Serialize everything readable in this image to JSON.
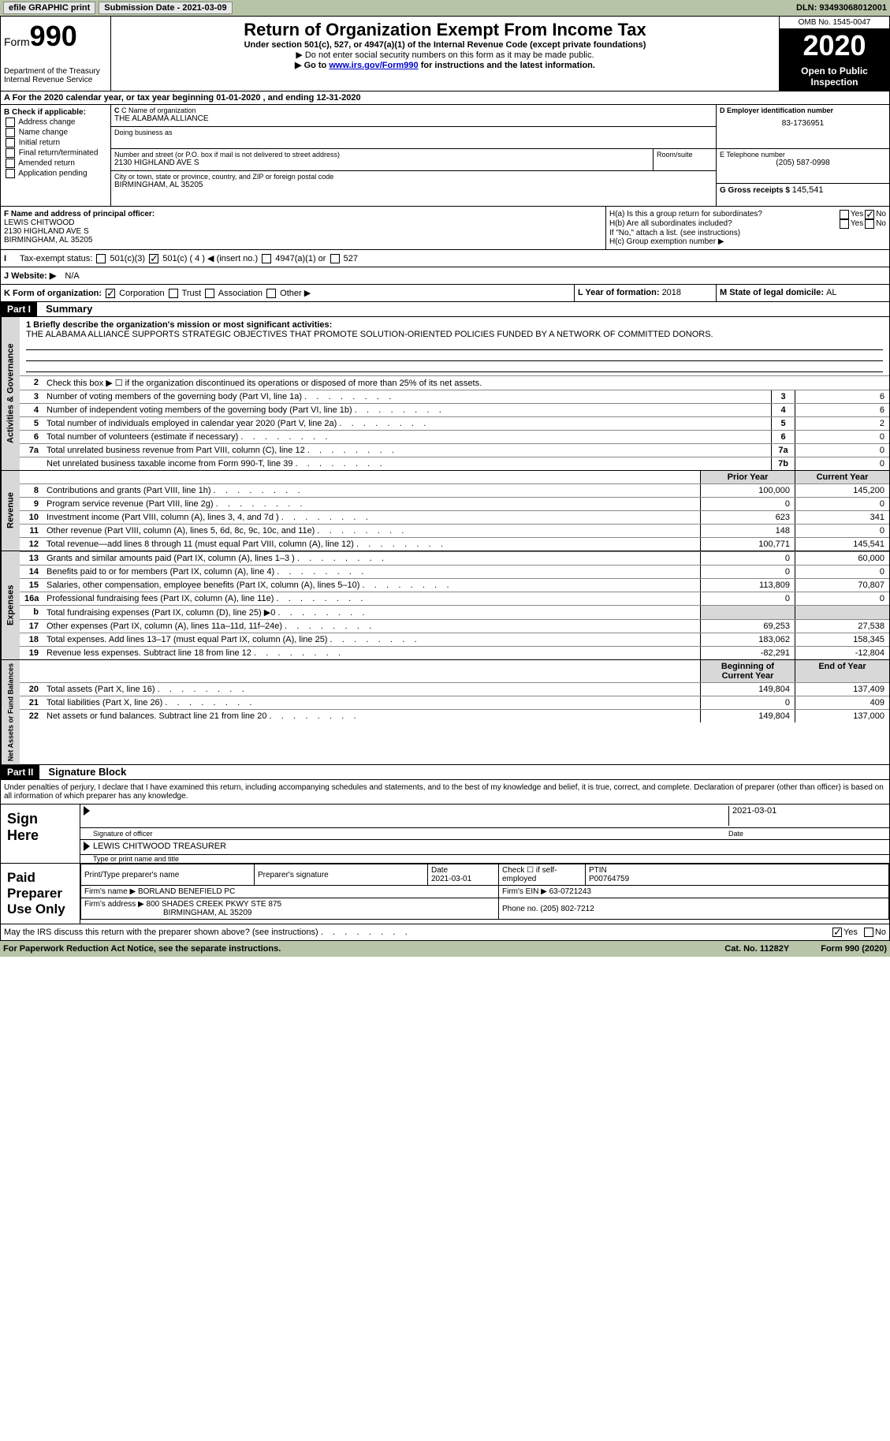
{
  "topbar": {
    "efile": "efile GRAPHIC print",
    "submission_label": "Submission Date - ",
    "submission_date": "2021-03-09",
    "dln_label": "DLN: ",
    "dln": "93493068012001"
  },
  "header": {
    "form_word": "Form",
    "form_num": "990",
    "dept": "Department of the Treasury\nInternal Revenue Service",
    "title": "Return of Organization Exempt From Income Tax",
    "sub1": "Under section 501(c), 527, or 4947(a)(1) of the Internal Revenue Code (except private foundations)",
    "sub2": "▶ Do not enter social security numbers on this form as it may be made public.",
    "sub3_pre": "▶ Go to ",
    "sub3_link": "www.irs.gov/Form990",
    "sub3_post": " for instructions and the latest information.",
    "omb": "OMB No. 1545-0047",
    "year": "2020",
    "inspect": "Open to Public Inspection"
  },
  "section_a": "A For the 2020 calendar year, or tax year beginning 01-01-2020    , and ending 12-31-2020",
  "section_b": {
    "label": "B Check if applicable:",
    "opts": [
      "Address change",
      "Name change",
      "Initial return",
      "Final return/terminated",
      "Amended return",
      "Application pending"
    ]
  },
  "section_c": {
    "name_label": "C Name of organization",
    "name": "THE ALABAMA ALLIANCE",
    "dba_label": "Doing business as",
    "dba": "",
    "addr_label": "Number and street (or P.O. box if mail is not delivered to street address)",
    "room_label": "Room/suite",
    "addr": "2130 HIGHLAND AVE S",
    "city_label": "City or town, state or province, country, and ZIP or foreign postal code",
    "city": "BIRMINGHAM, AL  35205"
  },
  "section_d": {
    "label": "D Employer identification number",
    "value": "83-1736951"
  },
  "section_e": {
    "label": "E Telephone number",
    "value": "(205) 587-0998"
  },
  "section_g": {
    "label": "G Gross receipts $ ",
    "value": "145,541"
  },
  "section_f": {
    "label": "F  Name and address of principal officer:",
    "name": "LEWIS CHITWOOD",
    "addr1": "2130 HIGHLAND AVE S",
    "addr2": "BIRMINGHAM, AL  35205"
  },
  "section_h": {
    "ha": "H(a)  Is this a group return for subordinates?",
    "hb": "H(b)  Are all subordinates included?",
    "hb_note": "If \"No,\" attach a list. (see instructions)",
    "hc": "H(c)  Group exemption number ▶",
    "yes": "Yes",
    "no": "No"
  },
  "tax_status": {
    "label": "Tax-exempt status:",
    "opts": [
      "501(c)(3)",
      "501(c) ( 4 ) ◀ (insert no.)",
      "4947(a)(1) or",
      "527"
    ]
  },
  "website": {
    "label": "J   Website: ▶",
    "value": "N/A"
  },
  "section_k": {
    "label": "K Form of organization:",
    "opts": [
      "Corporation",
      "Trust",
      "Association",
      "Other ▶"
    ]
  },
  "section_l": {
    "label": "L Year of formation: ",
    "value": "2018"
  },
  "section_m": {
    "label": "M State of legal domicile: ",
    "value": "AL"
  },
  "part1": {
    "num": "Part I",
    "title": "Summary",
    "mission_label": "1  Briefly describe the organization's mission or most significant activities:",
    "mission": "THE ALABAMA ALLIANCE SUPPORTS STRATEGIC OBJECTIVES THAT PROMOTE SOLUTION-ORIENTED POLICIES FUNDED BY A NETWORK OF COMMITTED DONORS.",
    "line2": "Check this box ▶ ☐  if the organization discontinued its operations or disposed of more than 25% of its net assets.",
    "gov_label": "Activities & Governance",
    "rev_label": "Revenue",
    "exp_label": "Expenses",
    "net_label": "Net Assets or Fund Balances",
    "prior_header": "Prior Year",
    "current_header": "Current Year",
    "beg_header": "Beginning of Current Year",
    "end_header": "End of Year",
    "rows_gov": [
      {
        "n": "3",
        "d": "Number of voting members of the governing body (Part VI, line 1a)",
        "sn": "3",
        "v": "6"
      },
      {
        "n": "4",
        "d": "Number of independent voting members of the governing body (Part VI, line 1b)",
        "sn": "4",
        "v": "6"
      },
      {
        "n": "5",
        "d": "Total number of individuals employed in calendar year 2020 (Part V, line 2a)",
        "sn": "5",
        "v": "2"
      },
      {
        "n": "6",
        "d": "Total number of volunteers (estimate if necessary)",
        "sn": "6",
        "v": "0"
      },
      {
        "n": "7a",
        "d": "Total unrelated business revenue from Part VIII, column (C), line 12",
        "sn": "7a",
        "v": "0"
      },
      {
        "n": "",
        "d": "Net unrelated business taxable income from Form 990-T, line 39",
        "sn": "7b",
        "v": "0"
      }
    ],
    "rows_rev": [
      {
        "n": "8",
        "d": "Contributions and grants (Part VIII, line 1h)",
        "p": "100,000",
        "c": "145,200"
      },
      {
        "n": "9",
        "d": "Program service revenue (Part VIII, line 2g)",
        "p": "0",
        "c": "0"
      },
      {
        "n": "10",
        "d": "Investment income (Part VIII, column (A), lines 3, 4, and 7d )",
        "p": "623",
        "c": "341"
      },
      {
        "n": "11",
        "d": "Other revenue (Part VIII, column (A), lines 5, 6d, 8c, 9c, 10c, and 11e)",
        "p": "148",
        "c": "0"
      },
      {
        "n": "12",
        "d": "Total revenue—add lines 8 through 11 (must equal Part VIII, column (A), line 12)",
        "p": "100,771",
        "c": "145,541"
      }
    ],
    "rows_exp": [
      {
        "n": "13",
        "d": "Grants and similar amounts paid (Part IX, column (A), lines 1–3 )",
        "p": "0",
        "c": "60,000"
      },
      {
        "n": "14",
        "d": "Benefits paid to or for members (Part IX, column (A), line 4)",
        "p": "0",
        "c": "0"
      },
      {
        "n": "15",
        "d": "Salaries, other compensation, employee benefits (Part IX, column (A), lines 5–10)",
        "p": "113,809",
        "c": "70,807"
      },
      {
        "n": "16a",
        "d": "Professional fundraising fees (Part IX, column (A), line 11e)",
        "p": "0",
        "c": "0"
      },
      {
        "n": "b",
        "d": "Total fundraising expenses (Part IX, column (D), line 25) ▶0",
        "p": "",
        "c": "",
        "shaded": true
      },
      {
        "n": "17",
        "d": "Other expenses (Part IX, column (A), lines 11a–11d, 11f–24e)",
        "p": "69,253",
        "c": "27,538"
      },
      {
        "n": "18",
        "d": "Total expenses. Add lines 13–17 (must equal Part IX, column (A), line 25)",
        "p": "183,062",
        "c": "158,345"
      },
      {
        "n": "19",
        "d": "Revenue less expenses. Subtract line 18 from line 12",
        "p": "-82,291",
        "c": "-12,804"
      }
    ],
    "rows_net": [
      {
        "n": "20",
        "d": "Total assets (Part X, line 16)",
        "p": "149,804",
        "c": "137,409"
      },
      {
        "n": "21",
        "d": "Total liabilities (Part X, line 26)",
        "p": "0",
        "c": "409"
      },
      {
        "n": "22",
        "d": "Net assets or fund balances. Subtract line 21 from line 20",
        "p": "149,804",
        "c": "137,000"
      }
    ]
  },
  "part2": {
    "num": "Part II",
    "title": "Signature Block",
    "penalties": "Under penalties of perjury, I declare that I have examined this return, including accompanying schedules and statements, and to the best of my knowledge and belief, it is true, correct, and complete. Declaration of preparer (other than officer) is based on all information of which preparer has any knowledge.",
    "sign_here": "Sign Here",
    "sig_officer": "Signature of officer",
    "sig_date": "2021-03-01",
    "date_label": "Date",
    "officer_name": "LEWIS CHITWOOD  TREASURER",
    "type_name": "Type or print name and title",
    "paid_prep": "Paid Preparer Use Only",
    "prep_name_label": "Print/Type preparer's name",
    "prep_sig_label": "Preparer's signature",
    "prep_date_label": "Date",
    "prep_date": "2021-03-01",
    "check_self": "Check ☐ if self-employed",
    "ptin_label": "PTIN",
    "ptin": "P00764759",
    "firm_name_label": "Firm's name     ▶ ",
    "firm_name": "BORLAND BENEFIELD PC",
    "firm_ein_label": "Firm's EIN ▶ ",
    "firm_ein": "63-0721243",
    "firm_addr_label": "Firm's address ▶ ",
    "firm_addr": "800 SHADES CREEK PKWY STE 875",
    "firm_city": "BIRMINGHAM, AL  35209",
    "phone_label": "Phone no. ",
    "phone": "(205) 802-7212",
    "may_irs": "May the IRS discuss this return with the preparer shown above? (see instructions)",
    "yes": "Yes",
    "no": "No"
  },
  "footer": {
    "pra": "For Paperwork Reduction Act Notice, see the separate instructions.",
    "cat": "Cat. No. 11282Y",
    "form": "Form 990 (2020)"
  }
}
